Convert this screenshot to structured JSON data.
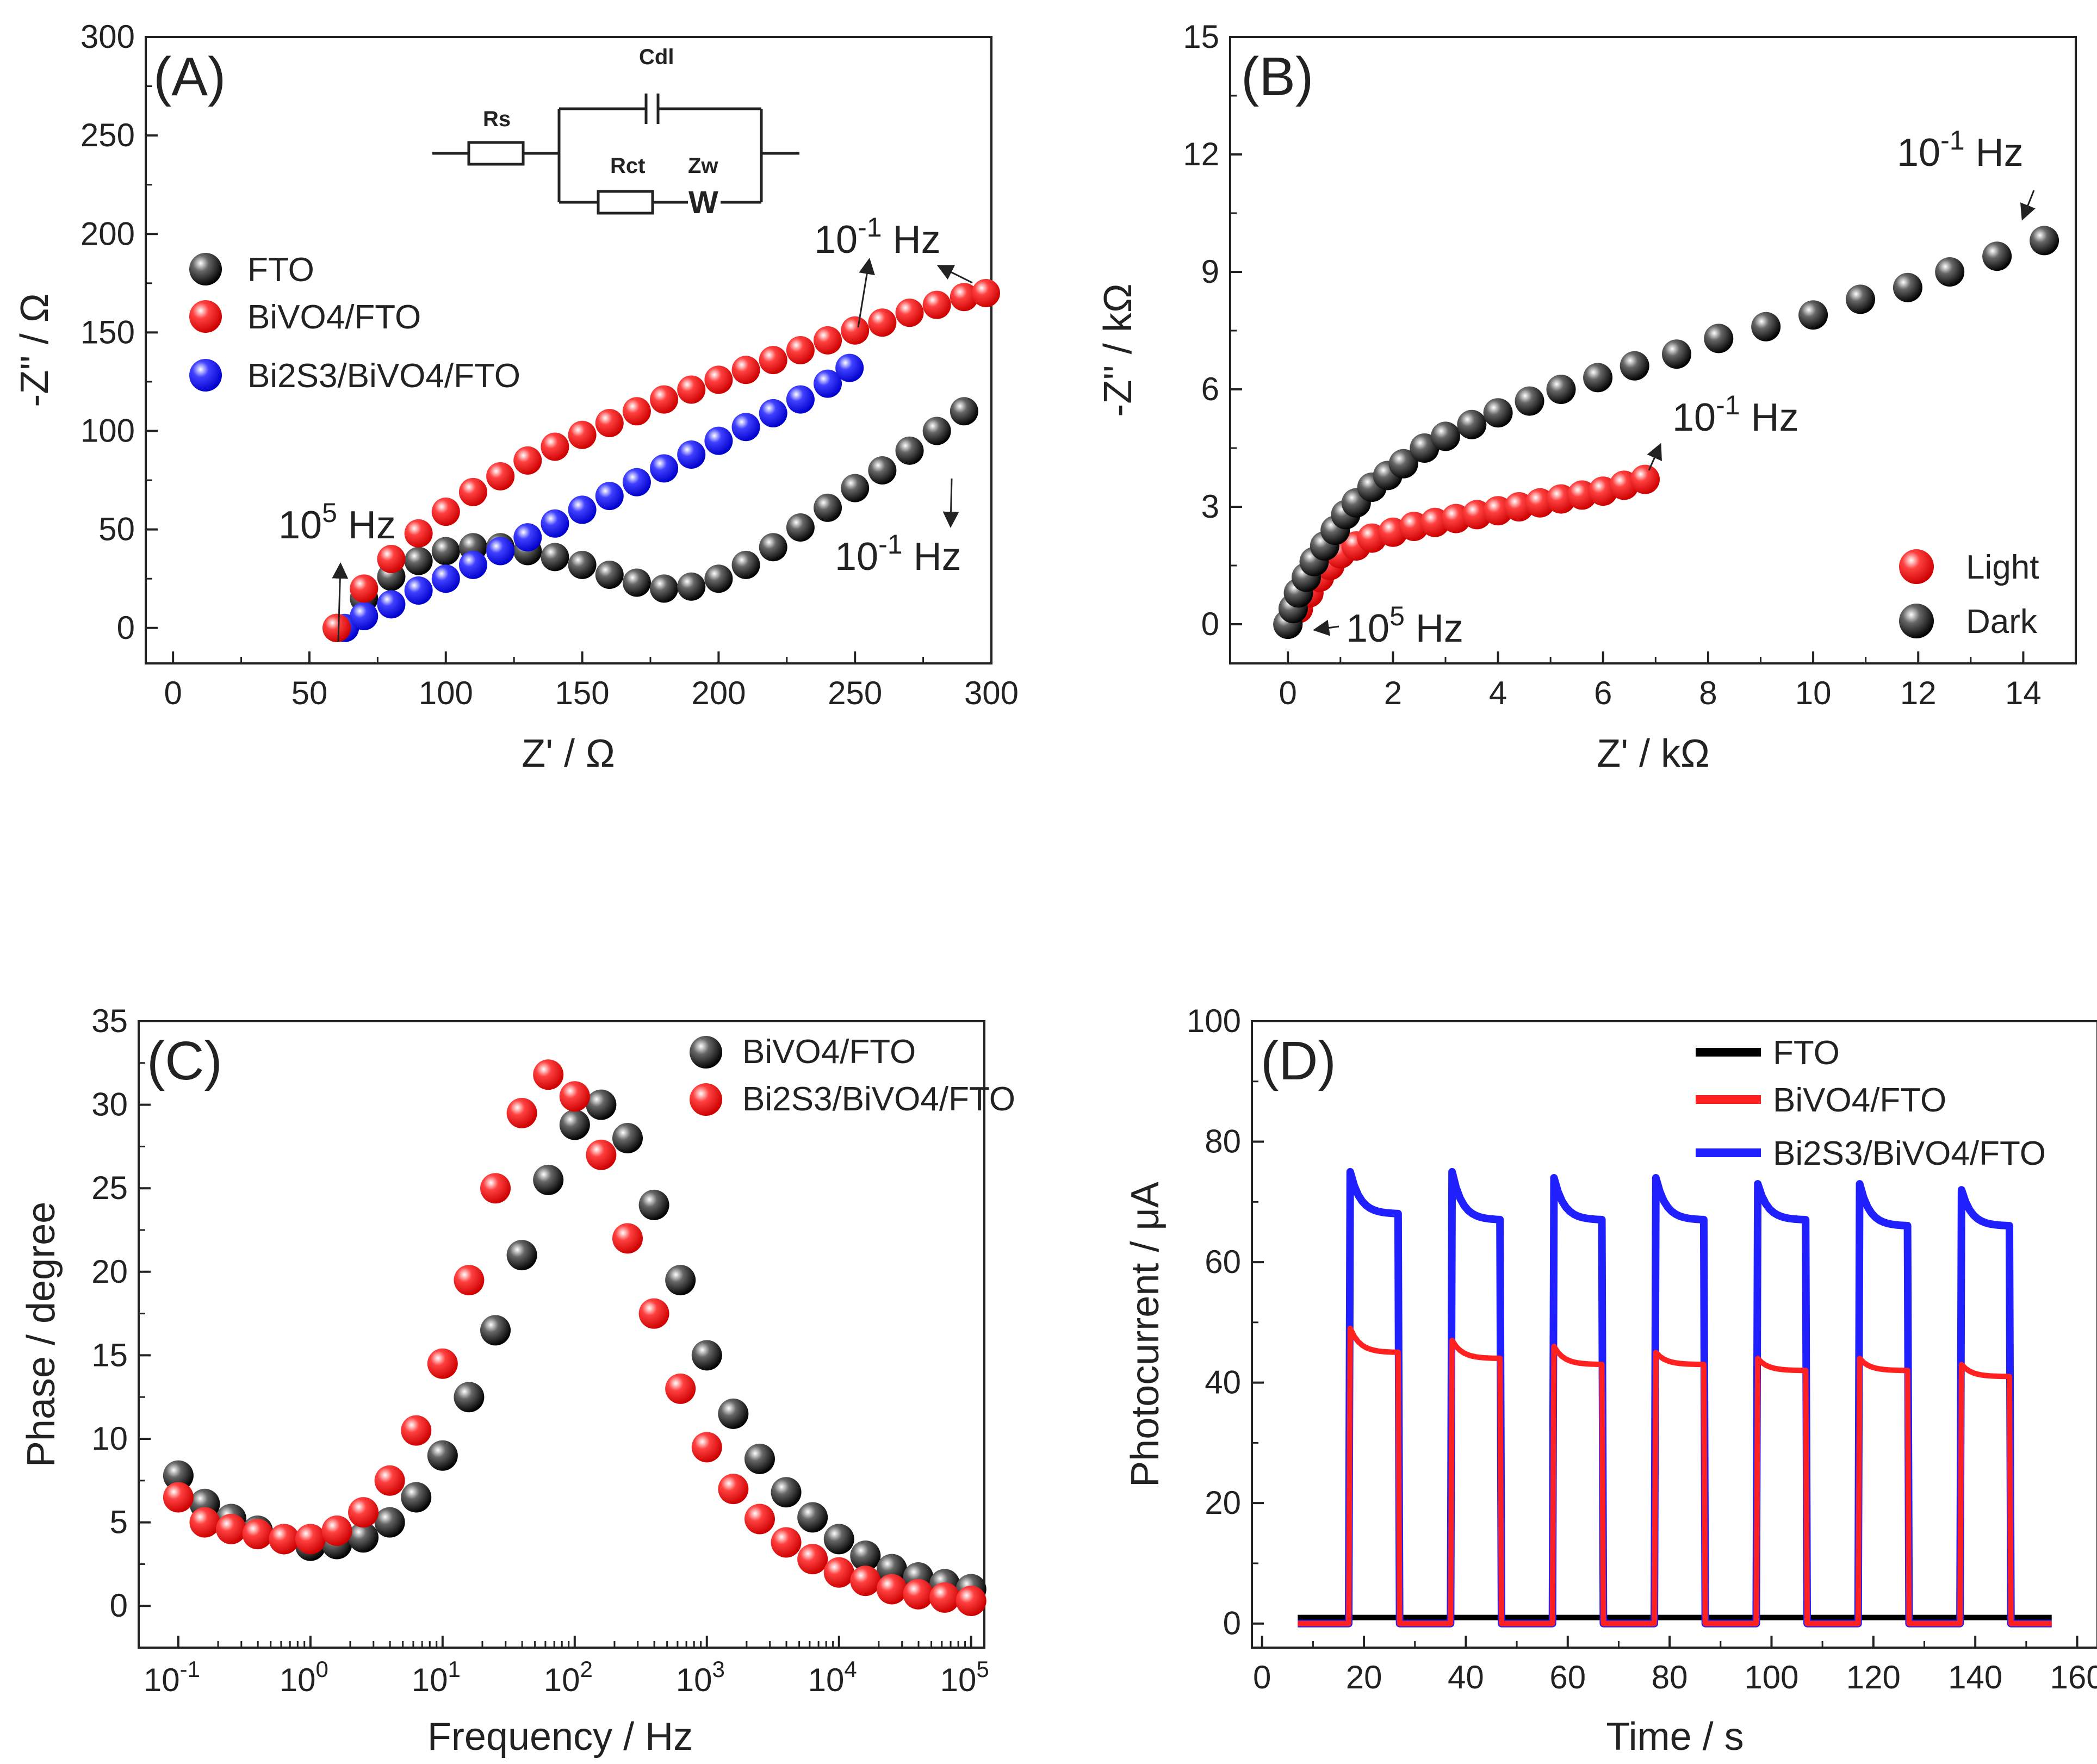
{
  "colors": {
    "black": "#1a1a1a",
    "red": "#ff2020",
    "blue": "#2020ff"
  },
  "chart_data": [
    {
      "panel": "(A)",
      "type": "scatter",
      "xlabel": "Z' / Ω",
      "ylabel": "-Z'' / Ω",
      "xlim": [
        0,
        300
      ],
      "ylim": [
        0,
        300
      ],
      "xticks": [
        "0",
        "50",
        "100",
        "150",
        "200",
        "250",
        "300"
      ],
      "yticks": [
        "0",
        "50",
        "100",
        "150",
        "200",
        "250",
        "300"
      ],
      "legend": [
        "FTO",
        "BiVO4/FTO",
        "Bi2S3/BiVO4/FTO"
      ],
      "circuit": {
        "rs": "Rs",
        "cdl": "Cdl",
        "rct": "Rct",
        "zw": "Zw",
        "w": "W"
      },
      "annotations": {
        "hf": "10",
        "hf_exp": "5",
        "hf_unit": " Hz",
        "lf": "10",
        "lf_exp": "-1",
        "lf_unit": " Hz"
      },
      "series": [
        {
          "name": "FTO",
          "color": "black",
          "x": [
            60,
            70,
            80,
            90,
            100,
            110,
            120,
            130,
            140,
            150,
            160,
            170,
            180,
            190,
            200,
            210,
            220,
            230,
            240,
            250,
            260,
            270,
            280,
            290
          ],
          "y": [
            0,
            15,
            26,
            34,
            39,
            41,
            41,
            39,
            36,
            32,
            27,
            23,
            20,
            21,
            25,
            32,
            41,
            51,
            61,
            71,
            80,
            90,
            100,
            110
          ]
        },
        {
          "name": "BiVO4/FTO",
          "color": "red",
          "x": [
            60,
            70,
            80,
            90,
            100,
            110,
            120,
            130,
            140,
            150,
            160,
            170,
            180,
            190,
            200,
            210,
            220,
            230,
            240,
            250,
            260,
            270,
            280,
            290,
            298
          ],
          "y": [
            0,
            20,
            35,
            48,
            59,
            69,
            77,
            85,
            92,
            98,
            104,
            110,
            116,
            121,
            126,
            131,
            136,
            141,
            146,
            151,
            155,
            160,
            164,
            168,
            170
          ]
        },
        {
          "name": "Bi2S3/BiVO4/FTO",
          "color": "blue",
          "x": [
            63,
            70,
            80,
            90,
            100,
            110,
            120,
            130,
            140,
            150,
            160,
            170,
            180,
            190,
            200,
            210,
            220,
            230,
            240,
            248
          ],
          "y": [
            0,
            6,
            12,
            19,
            25,
            32,
            39,
            46,
            53,
            60,
            67,
            74,
            81,
            88,
            95,
            102,
            109,
            116,
            124,
            132
          ]
        }
      ]
    },
    {
      "panel": "(B)",
      "type": "scatter",
      "xlabel": "Z' / kΩ",
      "ylabel": "-Z'' / kΩ",
      "xlim": [
        -1,
        15
      ],
      "ylim": [
        -1,
        15
      ],
      "xticks": [
        "0",
        "2",
        "4",
        "6",
        "8",
        "10",
        "12",
        "14"
      ],
      "yticks": [
        "0",
        "3",
        "6",
        "9",
        "12",
        "15"
      ],
      "legend": [
        "Light",
        "Dark"
      ],
      "annotations": {
        "hf": "10",
        "hf_exp": "5",
        "hf_unit": " Hz",
        "lf": "10",
        "lf_exp": "-1",
        "lf_unit": " Hz"
      },
      "series": [
        {
          "name": "Dark",
          "color": "black",
          "x": [
            0,
            0.1,
            0.2,
            0.35,
            0.5,
            0.7,
            0.9,
            1.1,
            1.3,
            1.6,
            1.9,
            2.2,
            2.6,
            3.0,
            3.5,
            4.0,
            4.6,
            5.2,
            5.9,
            6.6,
            7.4,
            8.2,
            9.1,
            10.0,
            10.9,
            11.8,
            12.6,
            13.5,
            14.4
          ],
          "y": [
            0,
            0.4,
            0.8,
            1.2,
            1.6,
            2.0,
            2.4,
            2.8,
            3.1,
            3.5,
            3.8,
            4.1,
            4.5,
            4.8,
            5.1,
            5.4,
            5.7,
            6.0,
            6.3,
            6.6,
            6.9,
            7.3,
            7.6,
            7.9,
            8.3,
            8.6,
            9.0,
            9.4,
            9.8
          ]
        },
        {
          "name": "Light",
          "color": "red",
          "x": [
            0,
            0.2,
            0.4,
            0.6,
            0.8,
            1.0,
            1.3,
            1.6,
            2.0,
            2.4,
            2.8,
            3.2,
            3.6,
            4.0,
            4.4,
            4.8,
            5.2,
            5.6,
            6.0,
            6.4,
            6.8
          ],
          "y": [
            0,
            0.4,
            0.8,
            1.2,
            1.5,
            1.8,
            2.0,
            2.2,
            2.35,
            2.5,
            2.6,
            2.7,
            2.8,
            2.9,
            3.0,
            3.1,
            3.2,
            3.3,
            3.4,
            3.55,
            3.7
          ]
        }
      ]
    },
    {
      "panel": "(C)",
      "type": "scatter",
      "xscale": "log",
      "xlabel": "Frequency / Hz",
      "ylabel": "Phase / degree",
      "xlim_log10": [
        -1.3,
        5.1
      ],
      "ylim": [
        -2.5,
        35
      ],
      "xticks_exp": [
        "-1",
        "0",
        "1",
        "2",
        "3",
        "4",
        "5"
      ],
      "xtick_base": "10",
      "yticks": [
        "0",
        "5",
        "10",
        "15",
        "20",
        "25",
        "30",
        "35"
      ],
      "legend": [
        "BiVO4/FTO",
        "Bi2S3/BiVO4/FTO"
      ],
      "series": [
        {
          "name": "BiVO4/FTO",
          "color": "black",
          "log10_x": [
            -1,
            -0.8,
            -0.6,
            -0.4,
            -0.2,
            0,
            0.2,
            0.4,
            0.6,
            0.8,
            1,
            1.2,
            1.4,
            1.6,
            1.8,
            2,
            2.2,
            2.4,
            2.6,
            2.8,
            3,
            3.2,
            3.4,
            3.6,
            3.8,
            4,
            4.2,
            4.4,
            4.6,
            4.8,
            5
          ],
          "y": [
            7.8,
            6.1,
            5.2,
            4.5,
            4.0,
            3.6,
            3.7,
            4.1,
            5.0,
            6.5,
            9.0,
            12.5,
            16.5,
            21.0,
            25.5,
            28.8,
            30.0,
            28.0,
            24.0,
            19.5,
            15.0,
            11.5,
            8.8,
            6.8,
            5.3,
            4.0,
            3.0,
            2.2,
            1.7,
            1.3,
            1.0
          ]
        },
        {
          "name": "Bi2S3/BiVO4/FTO",
          "color": "red",
          "log10_x": [
            -1,
            -0.8,
            -0.6,
            -0.4,
            -0.2,
            0,
            0.2,
            0.4,
            0.6,
            0.8,
            1,
            1.2,
            1.4,
            1.6,
            1.8,
            2,
            2.2,
            2.4,
            2.6,
            2.8,
            3,
            3.2,
            3.4,
            3.6,
            3.8,
            4,
            4.2,
            4.4,
            4.6,
            4.8,
            5
          ],
          "y": [
            6.5,
            5.0,
            4.6,
            4.3,
            4.0,
            4.0,
            4.5,
            5.6,
            7.5,
            10.5,
            14.5,
            19.5,
            25.0,
            29.5,
            31.8,
            30.5,
            27.0,
            22.0,
            17.5,
            13.0,
            9.5,
            7.0,
            5.2,
            3.8,
            2.8,
            2.0,
            1.5,
            1.0,
            0.7,
            0.5,
            0.3
          ]
        }
      ]
    },
    {
      "panel": "(D)",
      "type": "line",
      "xlabel": "Time / s",
      "ylabel": "Photocurrent / μA",
      "xlim": [
        -2,
        164
      ],
      "ylim": [
        -4,
        100
      ],
      "xticks": [
        "0",
        "20",
        "40",
        "60",
        "80",
        "100",
        "120",
        "140",
        "160"
      ],
      "yticks": [
        "0",
        "20",
        "40",
        "60",
        "80",
        "100"
      ],
      "legend": [
        "FTO",
        "BiVO4/FTO",
        "Bi2S3/BiVO4/FTO"
      ],
      "light_on_s": [
        17,
        37,
        57,
        77,
        97,
        117,
        137
      ],
      "light_off_s": [
        27,
        47,
        67,
        87,
        107,
        127,
        147
      ],
      "t_range_s": [
        7,
        155
      ],
      "series": [
        {
          "name": "FTO",
          "color": "black",
          "dark": 1,
          "peak": [
            1,
            1,
            1,
            1,
            1,
            1,
            1
          ],
          "plateau": [
            1,
            1,
            1,
            1,
            1,
            1,
            1
          ]
        },
        {
          "name": "BiVO4/FTO",
          "color": "red",
          "dark": 0,
          "peak": [
            49,
            47,
            46,
            45,
            44,
            44,
            43
          ],
          "plateau": [
            45,
            44,
            43,
            43,
            42,
            42,
            41
          ]
        },
        {
          "name": "Bi2S3/BiVO4/FTO",
          "color": "blue",
          "dark": 0,
          "peak": [
            75,
            75,
            74,
            74,
            73,
            73,
            72
          ],
          "plateau": [
            68,
            67,
            67,
            67,
            67,
            66,
            66
          ]
        }
      ]
    }
  ]
}
